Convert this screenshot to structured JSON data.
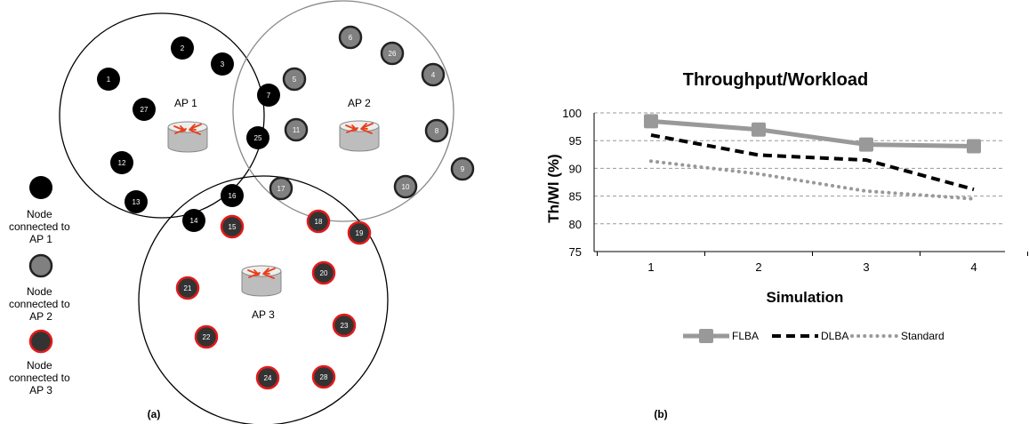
{
  "diagram": {
    "caption": "(a)",
    "access_points": [
      {
        "label": "AP 1"
      },
      {
        "label": "AP 2"
      },
      {
        "label": "AP 3"
      }
    ],
    "nodes_ap1": [
      "1",
      "2",
      "3",
      "7",
      "12",
      "13",
      "14",
      "16",
      "25",
      "27"
    ],
    "nodes_ap2": [
      "4",
      "5",
      "6",
      "8",
      "9",
      "10",
      "11",
      "17",
      "26"
    ],
    "nodes_ap3": [
      "15",
      "18",
      "19",
      "20",
      "21",
      "22",
      "23",
      "24",
      "28"
    ],
    "legend": [
      {
        "lines": [
          "Node",
          "connected to",
          "AP 1"
        ]
      },
      {
        "lines": [
          "Node",
          "connected to",
          "AP 2"
        ]
      },
      {
        "lines": [
          "Node",
          "connected to",
          "AP 3"
        ]
      }
    ],
    "colors": {
      "ap1_fill": "#000000",
      "ap2_fill": "#808080",
      "ap3_fill": "#333333",
      "ap3_ring": "#e31b1b",
      "router_arrows": "#e8401c"
    }
  },
  "chart_caption": "(b)",
  "chart_data": {
    "type": "line",
    "title": "Throughput/Workload",
    "xlabel": "Simulation",
    "ylabel": "Th/Wl (%)",
    "x": [
      1,
      2,
      3,
      4
    ],
    "x_ticks": [
      "1",
      "2",
      "3",
      "4"
    ],
    "y_ticks": [
      "75",
      "80",
      "85",
      "90",
      "95",
      "100"
    ],
    "ylim": [
      75,
      100
    ],
    "grid": true,
    "legend_position": "bottom",
    "series": [
      {
        "name": "FLBA",
        "values": [
          98.5,
          97.0,
          94.3,
          94.0
        ],
        "color": "#999999",
        "style": "solid-square-markers"
      },
      {
        "name": "DLBA",
        "values": [
          96.0,
          92.4,
          91.5,
          86.2
        ],
        "color": "#000000",
        "style": "dashed"
      },
      {
        "name": "Standard",
        "values": [
          91.3,
          89.0,
          85.9,
          84.5
        ],
        "color": "#999999",
        "style": "dotted"
      }
    ]
  }
}
